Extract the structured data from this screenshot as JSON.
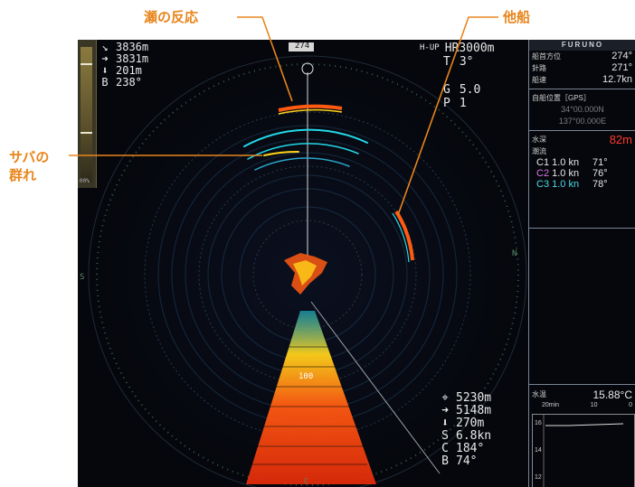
{
  "annotations": {
    "shoal_reaction": "瀬の反応",
    "other_ship": "他船",
    "mackerel_line1": "サバの",
    "mackerel_line2": "群れ"
  },
  "sonar": {
    "heading_box": "274",
    "north_label": "N",
    "south_label": "S",
    "range_mark": "100",
    "bottom_mark": "C",
    "gauge_label": "00%"
  },
  "top_left_readout": [
    {
      "icon": "↘",
      "value": "3836m"
    },
    {
      "icon": "➜",
      "value": "3831m"
    },
    {
      "icon": "⬇",
      "value": "201m"
    },
    {
      "icon": "B",
      "value": "238°"
    }
  ],
  "top_right_readout": {
    "mode": "H-UP",
    "range": "HR3000m",
    "tilt_label": "T",
    "tilt_value": "3°",
    "gain_label": "G",
    "gain_value": "5.0",
    "program_label": "P",
    "program_value": "1"
  },
  "bottom_right_readout": [
    {
      "icon": "⌖",
      "value": "5230m"
    },
    {
      "icon": "➜",
      "value": "5148m"
    },
    {
      "icon": "⬇",
      "value": "270m"
    },
    {
      "icon": "S",
      "value": "6.8kn"
    },
    {
      "icon": "C",
      "value": "184°"
    },
    {
      "icon": "B",
      "value": "74°"
    }
  ],
  "side_panel": {
    "brand": "FURUNO",
    "heading_label": "船首方位",
    "heading_value": "274°",
    "course_label": "針路",
    "course_value": "271°",
    "speed_label": "船速",
    "speed_value": "12.7kn",
    "position_label": "自船位置［GPS］",
    "lat": "34°00.000N",
    "lon": "137°00.000E",
    "depth_label": "水深",
    "depth_value": "82m",
    "current_label": "潮流",
    "currents": [
      {
        "name": "C1",
        "speed": "1.0 kn",
        "dir": "71°",
        "color": "#e6e6e6"
      },
      {
        "name": "C2",
        "speed": "1.0 kn",
        "dir": "76°",
        "color": "#d678e0"
      },
      {
        "name": "C3",
        "speed": "1.0 kn",
        "dir": "78°",
        "color": "#4fd7e6"
      }
    ],
    "temp_label": "水温",
    "temp_value": "15.88°C",
    "graph_axis": [
      "20min",
      "10",
      "0"
    ],
    "graph_y": [
      "16",
      "14",
      "12"
    ]
  },
  "colors": {
    "annotation": "#e8851c",
    "echo_strong": "#ff3b10",
    "echo_mid": "#ffd21a",
    "echo_weak": "#23d8e8",
    "depth_value": "#ff3a2a"
  }
}
